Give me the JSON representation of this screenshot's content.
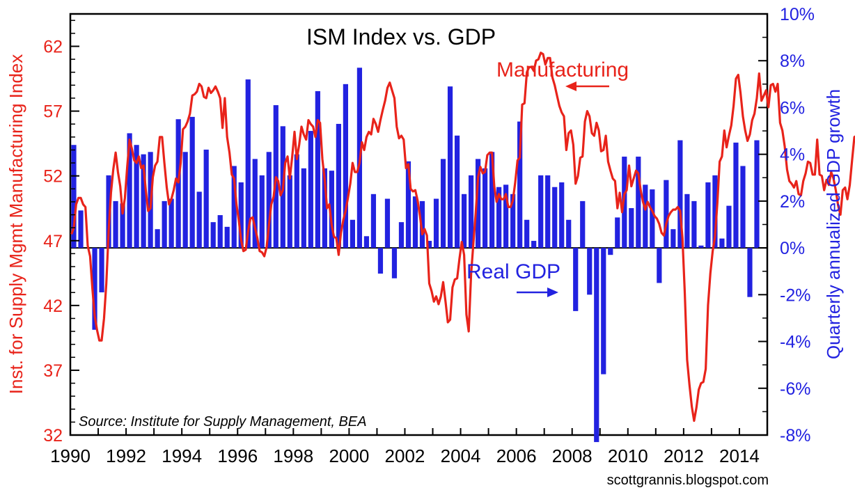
{
  "chart_data": {
    "type": "bar+line",
    "title": "ISM Index vs. GDP",
    "source": "Source:  Institute for Supply Management, BEA",
    "credit": "scottgrannis.blogspot.com",
    "ylabel_left": "Inst. for Supply Mgmt Manufacturing Index",
    "ylabel_right": "Quarterly annualized GDP growth",
    "annotations": {
      "line": "Manufacturing",
      "bars": "Real GDP"
    },
    "colors": {
      "line": "#e8231a",
      "bars": "#2222e0",
      "left_axis": "#e8231a",
      "right_axis": "#2222e0"
    },
    "x_range": [
      1990,
      2015
    ],
    "x_ticks": [
      "1990",
      "1992",
      "1994",
      "1996",
      "1998",
      "2000",
      "2002",
      "2004",
      "2006",
      "2008",
      "2010",
      "2012",
      "2014"
    ],
    "ylim_left": [
      32,
      64.5
    ],
    "y_ticks_left": [
      "32",
      "37",
      "42",
      "47",
      "52",
      "57",
      "62"
    ],
    "ylim_right": [
      -8,
      10
    ],
    "y_ticks_right": [
      "-8%",
      "-6%",
      "-4%",
      "-2%",
      "0%",
      "2%",
      "4%",
      "6%",
      "8%",
      "10%"
    ],
    "bar_series": {
      "name": "Real GDP",
      "start": 1990,
      "step": 0.25,
      "values": [
        4.4,
        1.6,
        0,
        -3.5,
        -1.9,
        3.1,
        2.0,
        1.9,
        4.9,
        4.4,
        4.0,
        4.1,
        0.8,
        2.0,
        2.1,
        5.5,
        4.1,
        5.6,
        2.4,
        4.2,
        1.1,
        1.4,
        0.9,
        3.5,
        2.8,
        7.2,
        3.8,
        3.1,
        4.1,
        6.1,
        5.2,
        3.1,
        4.0,
        3.4,
        5.0,
        6.7,
        3.4,
        3.3,
        5.3,
        7.0,
        1.2,
        7.7,
        0.5,
        2.3,
        -1.1,
        2.1,
        -1.3,
        1.1,
        3.7,
        2.2,
        2.0,
        0.3,
        2.1,
        3.8,
        6.9,
        4.8,
        2.3,
        3.1,
        3.8,
        3.4,
        4.1,
        2.6,
        2.7,
        2.3,
        5.4,
        1.2,
        0.3,
        3.1,
        3.1,
        2.6,
        2.8,
        1.2,
        -2.7,
        2.0,
        -2.0,
        -8.3,
        -5.4,
        -0.3,
        1.3,
        3.9,
        1.7,
        3.9,
        2.7,
        2.5,
        -1.5,
        2.9,
        0.8,
        4.6,
        2.3,
        2.0,
        0.1,
        2.8,
        3.1,
        0.4,
        1.8,
        4.5,
        3.5,
        -2.1,
        4.6
      ]
    },
    "line_series": {
      "name": "Manufacturing",
      "start": 1990,
      "step": 0.0833333,
      "values": [
        47.5,
        48.0,
        49.8,
        50.3,
        50.3,
        49.8,
        49.6,
        46.6,
        45.8,
        43.3,
        41.2,
        40.1,
        39.3,
        39.3,
        41.0,
        43.7,
        47.8,
        50.7,
        52.5,
        53.8,
        52.3,
        51.2,
        49.1,
        50.3,
        52.7,
        54.8,
        54.1,
        53.2,
        53.0,
        53.5,
        52.6,
        52.8,
        50.9,
        49.3,
        49.5,
        51.9,
        52.8,
        53.1,
        55.0,
        55.0,
        53.0,
        51.1,
        49.8,
        50.2,
        50.9,
        51.8,
        51.5,
        53.0,
        55.6,
        55.8,
        56.2,
        56.8,
        58.2,
        58.3,
        58.5,
        59.1,
        58.9,
        58.1,
        58.0,
        58.8,
        58.4,
        58.6,
        58.9,
        58.5,
        58.0,
        55.7,
        58.0,
        55.0,
        53.8,
        52.1,
        51.8,
        49.8,
        48.6,
        47.1,
        46.2,
        46.3,
        47.7,
        48.7,
        48.8,
        48.0,
        47.2,
        46.2,
        46.1,
        45.8,
        46.5,
        48.2,
        49.8,
        50.4,
        51.9,
        51.6,
        50.5,
        50.9,
        53.0,
        53.5,
        51.8,
        53.5,
        55.4,
        53.3,
        54.4,
        55.8,
        55.2,
        54.8,
        56.3,
        56.0,
        55.8,
        55.0,
        56.3,
        56.1,
        53.3,
        51.7,
        49.5,
        49.8,
        48.2,
        47.3,
        47.2,
        45.9,
        47.6,
        48.6,
        49.3,
        50.3,
        51.4,
        53.0,
        52.3,
        52.3,
        53.0,
        54.6,
        54.0,
        55.0,
        55.4,
        55.2,
        56.4,
        56.0,
        55.4,
        56.3,
        57.1,
        57.8,
        58.8,
        59.2,
        58.6,
        58.0,
        55.8,
        54.9,
        55.1,
        54.8,
        52.6,
        52.9,
        51.0,
        50.8,
        50.9,
        50.1,
        48.9,
        47.5,
        47.9,
        47.4,
        43.7,
        43.1,
        42.3,
        42.7,
        42.1,
        42.7,
        43.8,
        42.3,
        40.7,
        40.9,
        43.4,
        44.0,
        44.1,
        45.6,
        46.9,
        45.9,
        41.3,
        40.0,
        44.4,
        46.8,
        49.1,
        51.9,
        52.7,
        52.2,
        52.3,
        53.6,
        53.8,
        53.8,
        51.2,
        50.0,
        50.6,
        50.2,
        50.2,
        50.6,
        49.6,
        49.6,
        50.1,
        51.5,
        53.2,
        53.4,
        57.5,
        57.6,
        60.0,
        60.4,
        60.4,
        60.1,
        60.9,
        61.0,
        61.5,
        61.4,
        60.6,
        61.1,
        61.1,
        59.6,
        59.0,
        58.2,
        57.4,
        56.9,
        56.6,
        54.0,
        55.3,
        55.5,
        54.4,
        51.4,
        52.0,
        53.4,
        53.5,
        56.2,
        57.0,
        56.6,
        55.3,
        55.1,
        56.1,
        55.5,
        53.9,
        54.0,
        55.1,
        53.1,
        52.4,
        51.8,
        51.6,
        49.5,
        50.7,
        49.2,
        50.6,
        50.9,
        52.8,
        51.2,
        51.8,
        52.4,
        52.2,
        50.9,
        50.0,
        49.4,
        50.0,
        49.6,
        49.3,
        48.9,
        48.7,
        48.3,
        47.6,
        47.4,
        48.3,
        48.9,
        49.2,
        49.4,
        49.4,
        49.6,
        49.3,
        47.2,
        43.0,
        37.8,
        35.9,
        34.2,
        33.1,
        34.1,
        35.5,
        36.0,
        36.1,
        37.1,
        42.0,
        44.5,
        46.2,
        47.3,
        49.9,
        53.1,
        53.5,
        55.5,
        54.2,
        55.1,
        55.9,
        57.4,
        59.5,
        59.8,
        58.4,
        56.6,
        55.5,
        54.7,
        55.2,
        56.3,
        56.8,
        58.0,
        59.9,
        57.8,
        58.2,
        58.6,
        57.3,
        59.0,
        59.1,
        58.5,
        59.1,
        56.1,
        55.5,
        54.3,
        52.5,
        51.6,
        51.4,
        51.1,
        51.6,
        50.6,
        50.5,
        51.6,
        52.2,
        53.1,
        53.0,
        52.1,
        52.1,
        54.8,
        52.1,
        52.0,
        50.9,
        51.7,
        51.3,
        52.3,
        51.8,
        50.9,
        49.7,
        49.0,
        50.9,
        51.1,
        50.2,
        51.3,
        53.2,
        55.0,
        55.1,
        56.0,
        55.8,
        55.9,
        56.9,
        56.4,
        55.8,
        53.6,
        55.7,
        56.6,
        55.6,
        57.6,
        56.1,
        55.4,
        53.9
      ]
    }
  }
}
